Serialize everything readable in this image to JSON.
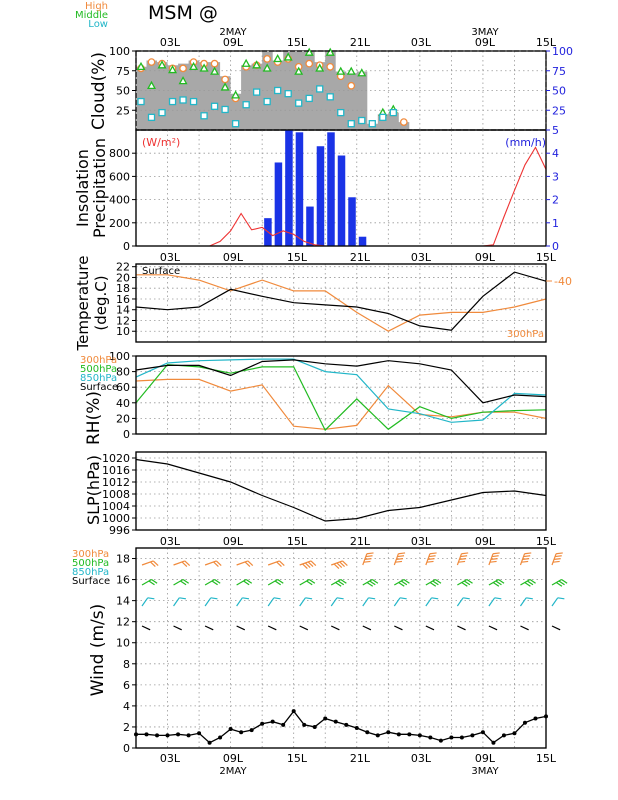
{
  "title": "MSM  @",
  "time_axis": {
    "hour_labels": [
      "03L",
      "09L",
      "15L",
      "21L",
      "03L",
      "09L",
      "15L"
    ],
    "date_labels": [
      "2MAY",
      "3MAY"
    ],
    "x_range": [
      0,
      39
    ]
  },
  "panels": {
    "cloud": {
      "ylabel": "Cloud(%)",
      "legend": [
        "High",
        "Middle",
        "Low"
      ],
      "left_ticks": [
        "25",
        "50",
        "75",
        "100"
      ],
      "right_ticks": [
        "25",
        "50",
        "75",
        "100"
      ]
    },
    "insolation": {
      "ylabel1": "Insolation",
      "ylabel2": "Precipitation",
      "left_unit": "(W/m²)",
      "right_unit": "(mm/h)",
      "left_ticks": [
        "0",
        "200",
        "400",
        "600",
        "800"
      ],
      "right_ticks": [
        "0",
        "1",
        "2",
        "3",
        "4",
        "5"
      ]
    },
    "temperature": {
      "ylabel1": "Temperature",
      "ylabel2": "(deg.C)",
      "label_surface": "Surface",
      "label_300": "300hPa",
      "right_label": "-40",
      "left_ticks": [
        "10",
        "12",
        "14",
        "16",
        "18",
        "20",
        "22"
      ]
    },
    "rh": {
      "ylabel": "RH(%)",
      "legend": [
        "300hPa",
        "500hPa",
        "850hPa",
        "Surface"
      ],
      "left_ticks": [
        "0",
        "20",
        "40",
        "60",
        "80",
        "100"
      ]
    },
    "slp": {
      "ylabel": "SLP(hPa)",
      "left_ticks": [
        "996",
        "1000",
        "1004",
        "1008",
        "1012",
        "1016",
        "1020"
      ]
    },
    "wind": {
      "ylabel": "Wind  (m/s)",
      "legend": [
        "300hPa",
        "500hPa",
        "850hPa",
        "Surface"
      ],
      "left_ticks": [
        "0",
        "2",
        "4",
        "6",
        "8",
        "10",
        "12",
        "14",
        "16",
        "18"
      ]
    }
  },
  "colors": {
    "high": "#f08a3c",
    "middle": "#22bb22",
    "low": "#22b6c8",
    "cloud_fill": "#a8a8a8",
    "insolation": "#ee3333",
    "precip": "#1a33e6",
    "surface": "#000000",
    "upper300": "#f08a3c",
    "mid500": "#22bb22",
    "low850": "#22b6c8",
    "right_axis_blue": "#2222dd"
  },
  "chart_data": [
    {
      "type": "area",
      "title": "Cloud(%)",
      "ylim": [
        0,
        100
      ],
      "x": [
        0,
        1,
        2,
        3,
        4,
        5,
        6,
        7,
        8,
        9,
        10,
        11,
        12,
        13,
        14,
        15,
        16,
        17,
        18,
        19,
        20,
        21,
        22,
        23,
        24,
        25,
        26,
        27,
        28,
        29,
        30,
        31,
        32,
        33,
        34,
        35,
        36,
        37,
        38,
        39
      ],
      "series": [
        {
          "name": "Total",
          "values": [
            80,
            88,
            86,
            82,
            84,
            88,
            86,
            86,
            68,
            46,
            82,
            84,
            100,
            88,
            100,
            100,
            100,
            86,
            100,
            74,
            72,
            74,
            8,
            20,
            22,
            10,
            0,
            0,
            0,
            0,
            0,
            0,
            0,
            0,
            0,
            0,
            0,
            0,
            0,
            0
          ]
        },
        {
          "name": "High",
          "values": [
            78,
            86,
            84,
            78,
            78,
            86,
            84,
            84,
            64,
            40,
            80,
            82,
            90,
            86,
            90,
            80,
            84,
            82,
            80,
            68,
            56,
            0,
            0,
            0,
            22,
            10,
            0,
            0,
            0,
            0,
            0,
            0,
            0,
            0,
            0,
            0,
            0,
            0,
            0,
            0
          ]
        },
        {
          "name": "Middle",
          "values": [
            80,
            56,
            82,
            76,
            62,
            80,
            78,
            74,
            54,
            44,
            84,
            82,
            78,
            90,
            92,
            74,
            98,
            78,
            98,
            74,
            74,
            72,
            0,
            22,
            26,
            0,
            0,
            0,
            0,
            0,
            0,
            0,
            0,
            0,
            0,
            0,
            0,
            0,
            0,
            0
          ]
        },
        {
          "name": "Low",
          "values": [
            36,
            16,
            22,
            36,
            38,
            36,
            18,
            30,
            26,
            8,
            32,
            48,
            36,
            50,
            46,
            34,
            40,
            52,
            42,
            22,
            8,
            12,
            8,
            16,
            22,
            0,
            0,
            0,
            0,
            0,
            0,
            0,
            0,
            0,
            0,
            0,
            0,
            0,
            0,
            0
          ]
        }
      ]
    },
    {
      "type": "bar",
      "title": "Insolation / Precipitation",
      "ylim": [
        0,
        1000
      ],
      "y2lim": [
        0,
        5
      ],
      "x": [
        0,
        1,
        2,
        3,
        4,
        5,
        6,
        7,
        8,
        9,
        10,
        11,
        12,
        13,
        14,
        15,
        16,
        17,
        18,
        19,
        20,
        21,
        22,
        23,
        24,
        25,
        26,
        27,
        28,
        29,
        30,
        31,
        32,
        33,
        34,
        35,
        36,
        37,
        38,
        39
      ],
      "series": [
        {
          "name": "Insolation",
          "axis": "left",
          "values": [
            0,
            0,
            0,
            0,
            0,
            0,
            0,
            0,
            40,
            130,
            280,
            140,
            160,
            90,
            130,
            100,
            40,
            10,
            0,
            0,
            0,
            0,
            0,
            0,
            0,
            0,
            0,
            0,
            0,
            0,
            0,
            0,
            0,
            0,
            10,
            250,
            480,
            700,
            850,
            660
          ]
        },
        {
          "name": "Precipitation",
          "axis": "right",
          "values": [
            0,
            0,
            0,
            0,
            0,
            0,
            0,
            0,
            0,
            0,
            0,
            0,
            1.2,
            3.6,
            5.0,
            4.9,
            1.7,
            4.3,
            4.9,
            3.9,
            2.1,
            0.4,
            0,
            0,
            0,
            0,
            0,
            0,
            0,
            0,
            0,
            0,
            0,
            0,
            0,
            0,
            0,
            0,
            0,
            0
          ]
        }
      ]
    },
    {
      "type": "line",
      "title": "Temperature",
      "ylim": [
        8,
        22.5
      ],
      "x": [
        0,
        3,
        6,
        9,
        12,
        15,
        18,
        21,
        24,
        27,
        30,
        33,
        36,
        39
      ],
      "series": [
        {
          "name": "Surface",
          "values": [
            14.5,
            14.0,
            14.5,
            17.8,
            16.5,
            15.3,
            14.9,
            14.5,
            13.3,
            11.0,
            10.2,
            16.5,
            21.0,
            19.3
          ]
        },
        {
          "name": "300hPa",
          "values": [
            20.5,
            20.5,
            19.5,
            17.5,
            19.5,
            17.5,
            17.5,
            13.5,
            10.0,
            13.0,
            13.5,
            13.5,
            14.5,
            16.0
          ]
        }
      ]
    },
    {
      "type": "line",
      "title": "RH(%)",
      "ylim": [
        0,
        100
      ],
      "x": [
        0,
        3,
        6,
        9,
        12,
        15,
        18,
        21,
        24,
        27,
        30,
        33,
        36,
        39
      ],
      "series": [
        {
          "name": "300hPa",
          "values": [
            68,
            70,
            70,
            55,
            63,
            10,
            6,
            11,
            62,
            25,
            22,
            28,
            28,
            20
          ]
        },
        {
          "name": "500hPa",
          "values": [
            40,
            89,
            86,
            78,
            86,
            86,
            5,
            45,
            6,
            35,
            20,
            28,
            30,
            31
          ]
        },
        {
          "name": "850hPa",
          "values": [
            73,
            91,
            94,
            95,
            96,
            96,
            80,
            76,
            32,
            26,
            15,
            18,
            52,
            50
          ]
        },
        {
          "name": "Surface",
          "values": [
            82,
            88,
            88,
            75,
            93,
            95,
            90,
            87,
            94,
            90,
            82,
            40,
            50,
            48
          ]
        }
      ]
    },
    {
      "type": "line",
      "title": "SLP(hPa)",
      "ylim": [
        996,
        1022
      ],
      "x": [
        0,
        3,
        6,
        9,
        12,
        15,
        18,
        21,
        24,
        27,
        30,
        33,
        36,
        39
      ],
      "series": [
        {
          "name": "Surface",
          "values": [
            1019.5,
            1018.0,
            1015.0,
            1012.0,
            1007.5,
            1003.5,
            999.0,
            999.8,
            1002.5,
            1003.5,
            1006.0,
            1008.5,
            1009.0,
            1007.5
          ]
        }
      ]
    },
    {
      "type": "line",
      "title": "Wind (m/s)",
      "ylim": [
        0,
        19
      ],
      "x": [
        0,
        1,
        2,
        3,
        4,
        5,
        6,
        7,
        8,
        9,
        10,
        11,
        12,
        13,
        14,
        15,
        16,
        17,
        18,
        19,
        20,
        21,
        22,
        23,
        24,
        25,
        26,
        27,
        28,
        29,
        30,
        31,
        32,
        33,
        34,
        35,
        36,
        37,
        38,
        39
      ],
      "series": [
        {
          "name": "Surface",
          "values": [
            1.3,
            1.3,
            1.2,
            1.2,
            1.3,
            1.2,
            1.4,
            0.5,
            1.0,
            1.8,
            1.5,
            1.7,
            2.3,
            2.5,
            2.2,
            3.5,
            2.2,
            2.0,
            2.8,
            2.5,
            2.2,
            1.9,
            1.5,
            1.2,
            1.5,
            1.3,
            1.3,
            1.2,
            1.0,
            0.7,
            1.0,
            1.0,
            1.2,
            1.5,
            0.5,
            1.2,
            1.4,
            2.4,
            2.8,
            3.0
          ]
        }
      ]
    }
  ]
}
